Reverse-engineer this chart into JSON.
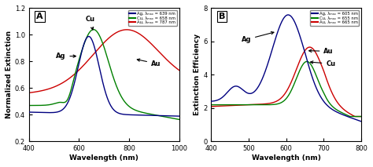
{
  "panel_A": {
    "title": "A",
    "xlabel": "Wavelength (nm)",
    "ylabel": "Normalized Extinction",
    "xlim": [
      400,
      1000
    ],
    "ylim": [
      0.2,
      1.2
    ],
    "yticks": [
      0.2,
      0.4,
      0.6,
      0.8,
      1.0,
      1.2
    ],
    "xticks": [
      400,
      600,
      800,
      1000
    ],
    "legend": [
      {
        "label": "Ag, λₘₐₓ = 639 nm",
        "color": "#000080"
      },
      {
        "label": "Cu, λₘₐₓ = 658 nm",
        "color": "#008000"
      },
      {
        "label": "Au, λₘₐₓ = 787 nm",
        "color": "#cc0000"
      }
    ]
  },
  "panel_B": {
    "title": "B",
    "xlabel": "Wavelength (nm)",
    "ylabel": "Extinction Efficiency",
    "xlim": [
      400,
      800
    ],
    "ylim": [
      0,
      8
    ],
    "yticks": [
      0,
      2,
      4,
      6,
      8
    ],
    "xticks": [
      400,
      500,
      600,
      700,
      800
    ],
    "legend": [
      {
        "label": "Ag, λₘₐₓ = 605 nm",
        "color": "#000080"
      },
      {
        "label": "Cu, λₘₐₓ = 655 nm",
        "color": "#008000"
      },
      {
        "label": "Au, λₘₐₓ = 665 nm",
        "color": "#cc0000"
      }
    ]
  },
  "bg_color": "#ffffff",
  "ag_color": "#000080",
  "cu_color": "#008000",
  "au_color": "#cc0000"
}
